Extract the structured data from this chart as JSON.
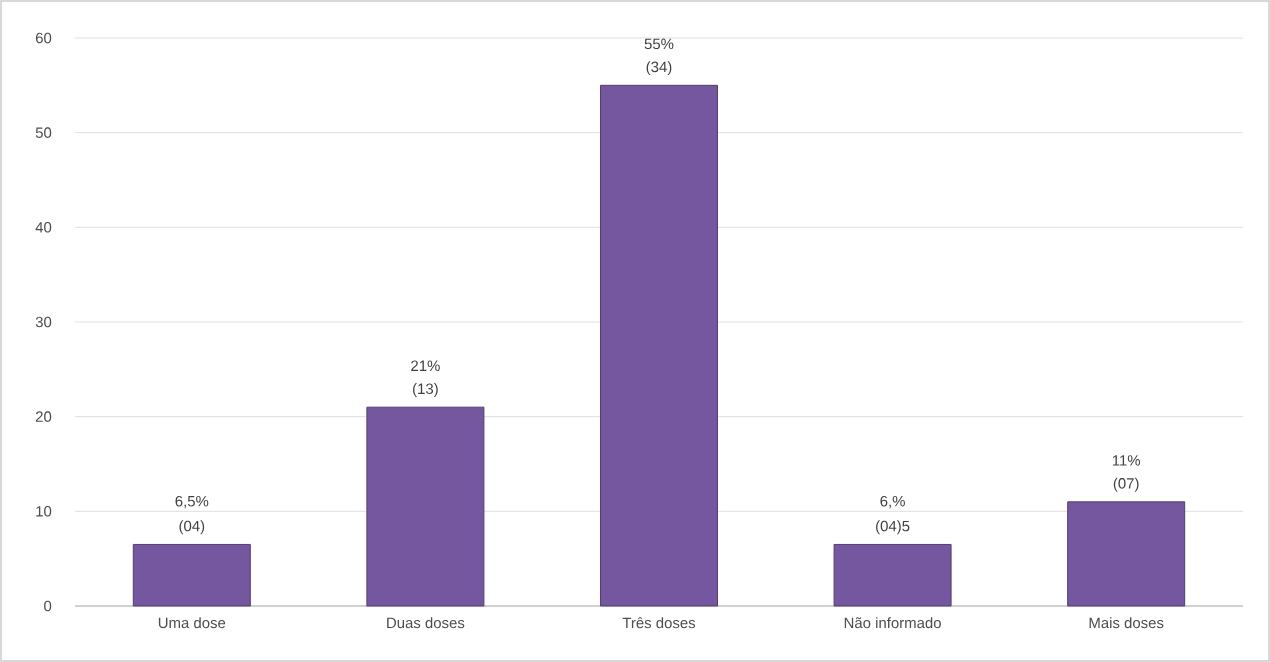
{
  "chart_data": {
    "type": "bar",
    "categories": [
      "Uma dose",
      "Duas doses",
      "Três doses",
      "Não informado",
      "Mais doses"
    ],
    "values": [
      6.5,
      21,
      55,
      6.5,
      11
    ],
    "color": "#7557a0",
    "value_labels": [
      "6,5%",
      "21%",
      "55%",
      "6,%",
      "11%"
    ],
    "annotations": [
      {
        "text": "(04)",
        "x": "Uma dose",
        "y": 6.5
      },
      {
        "text": "(13)",
        "x": "Duas doses",
        "y": 21
      },
      {
        "text": "(34)",
        "x": "Três doses",
        "y": 55
      },
      {
        "text": "(04)5",
        "x": "Não informado",
        "y": 6.5
      },
      {
        "text": "(07)",
        "x": "Mais doses",
        "y": 11
      }
    ],
    "ylim": [
      0,
      60
    ],
    "yticks": [
      0,
      10,
      20,
      30,
      40,
      50,
      60
    ],
    "grid": "y"
  }
}
